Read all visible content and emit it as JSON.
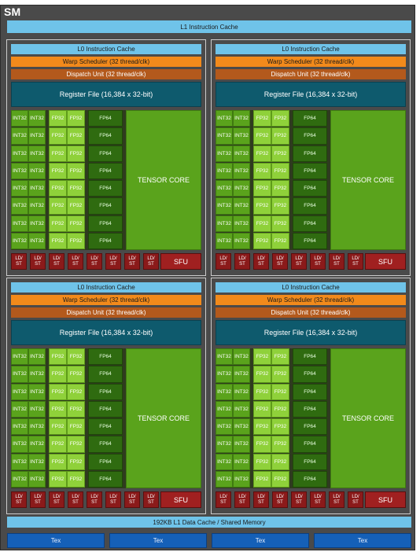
{
  "sm_label": "SM",
  "l1_instruction_cache": "L1 Instruction Cache",
  "l1_data_cache": "192KB L1 Data Cache / Shared Memory",
  "tex_units": [
    "Tex",
    "Tex",
    "Tex",
    "Tex"
  ],
  "partition": {
    "l0_cache": "L0 Instruction Cache",
    "warp_scheduler": "Warp Scheduler (32 thread/clk)",
    "dispatch_unit": "Dispatch Unit (32 thread/clk)",
    "register_file": "Register File (16,384 x 32-bit)",
    "int32": "INT32",
    "fp32": "FP32",
    "fp64": "FP64",
    "tensor_core": "TENSOR CORE",
    "ld": "LD/",
    "st": "ST",
    "sfu": "SFU"
  },
  "colors": {
    "cache": "#6fc3e9",
    "warp_scheduler": "#f28a1b",
    "dispatch_unit": "#b3591c",
    "register_file": "#0e5a6d",
    "int32": "#5aa31c",
    "fp32": "#8fd13a",
    "fp64": "#2f6b10",
    "ldst_sfu": "#8b1a1a",
    "tex": "#1560b8"
  }
}
